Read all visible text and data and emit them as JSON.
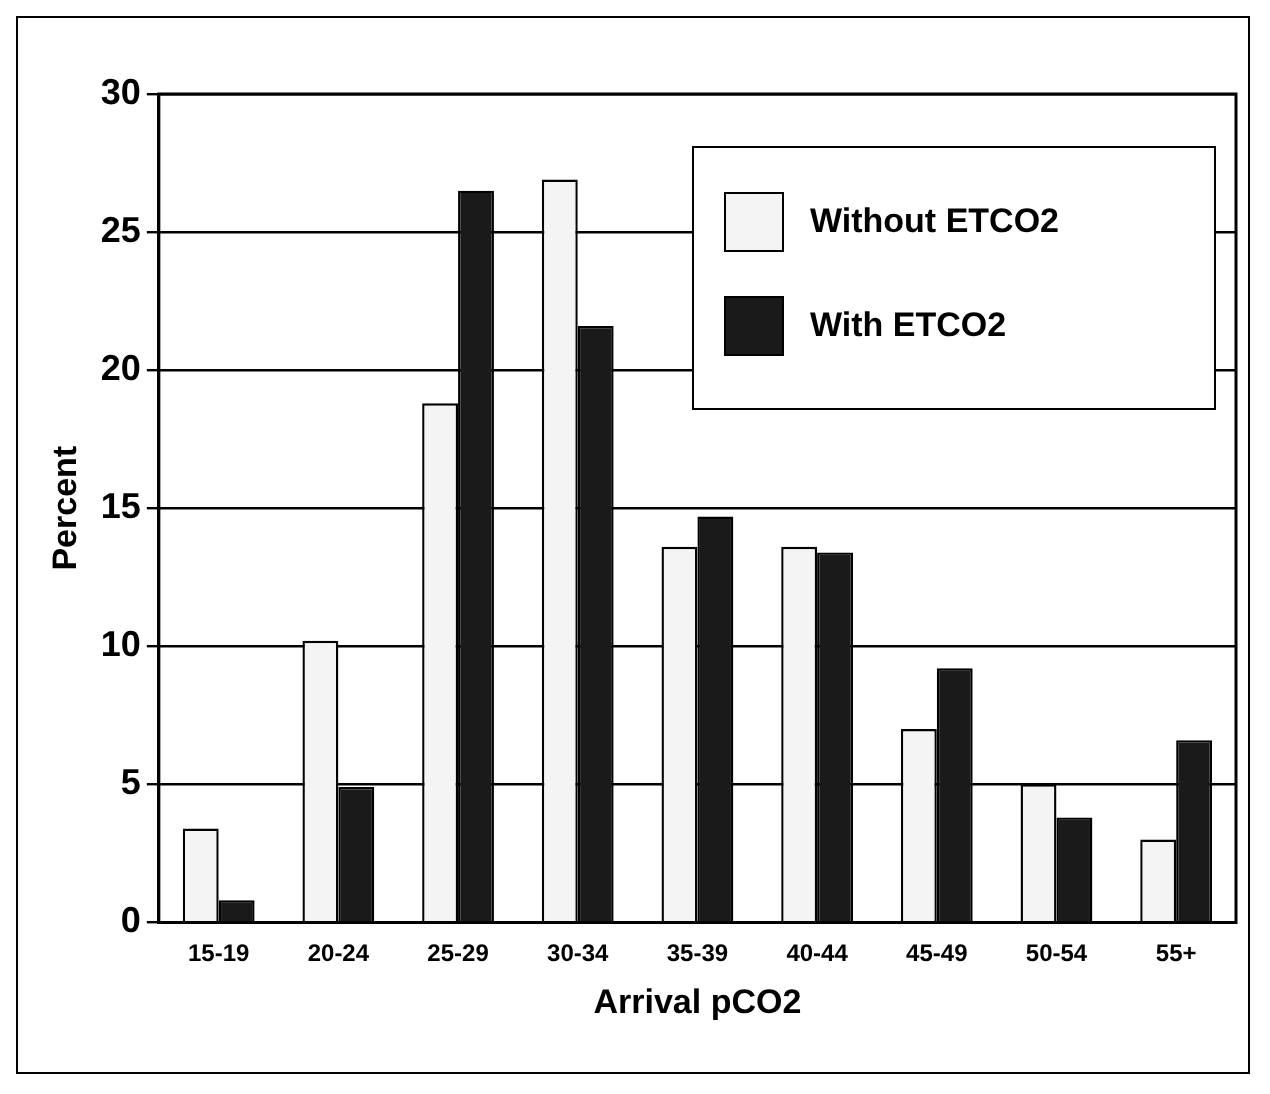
{
  "chart_data": {
    "type": "bar",
    "xlabel": "Arrival pCO2",
    "ylabel": "Percent",
    "categories": [
      "15-19",
      "20-24",
      "25-29",
      "30-34",
      "35-39",
      "40-44",
      "45-49",
      "50-54",
      "55+"
    ],
    "series": [
      {
        "name": "Without ETCO2",
        "color": "#f4f4f4",
        "values": [
          3.4,
          10.2,
          18.8,
          26.9,
          13.6,
          13.6,
          7.0,
          5.0,
          3.0
        ]
      },
      {
        "name": "With ETCO2",
        "color": "#1a1a1a",
        "values": [
          0.8,
          4.9,
          26.5,
          21.6,
          14.7,
          13.4,
          9.2,
          3.8,
          6.6
        ]
      }
    ],
    "ylim": [
      0,
      30
    ],
    "yticks": [
      0,
      5,
      10,
      15,
      20,
      25,
      30
    ],
    "grid": "y",
    "legend": "top right"
  }
}
